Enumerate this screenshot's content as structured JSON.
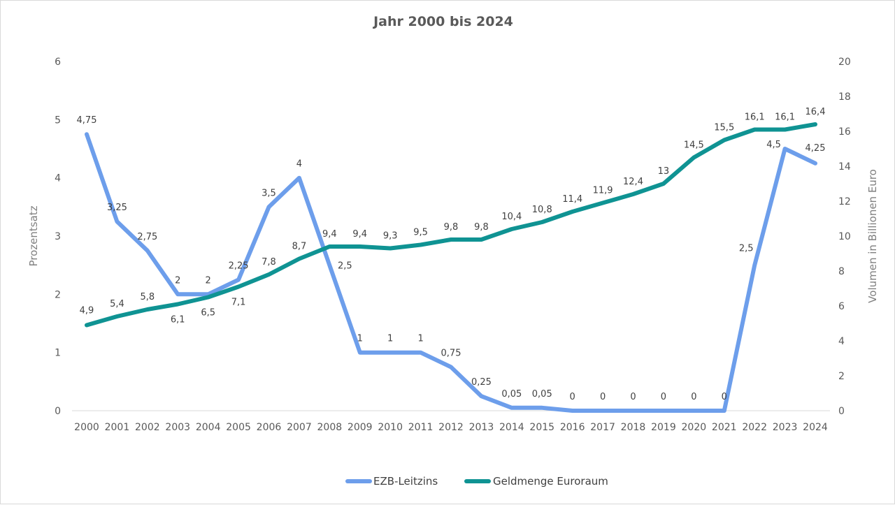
{
  "chart_data": {
    "type": "line",
    "title": "Jahr 2000 bis 2024",
    "ylabel_left": "Prozentsatz",
    "ylabel_right": "Volumen in Billionen Euro",
    "ylim_left": [
      0,
      6
    ],
    "ylim_right": [
      0,
      20
    ],
    "yticks_left": [
      "0",
      "1",
      "2",
      "3",
      "4",
      "5",
      "6"
    ],
    "yticks_right": [
      "0",
      "2",
      "4",
      "6",
      "8",
      "10",
      "12",
      "14",
      "16",
      "18",
      "20"
    ],
    "grid": false,
    "legend_position": "bottom",
    "categories": [
      "2000",
      "2001",
      "2002",
      "2003",
      "2004",
      "2005",
      "2006",
      "2007",
      "2008",
      "2009",
      "2010",
      "2011",
      "2012",
      "2013",
      "2014",
      "2015",
      "2016",
      "2017",
      "2018",
      "2019",
      "2020",
      "2021",
      "2022",
      "2023",
      "2024"
    ],
    "series": [
      {
        "name": "EZB-Leitzins",
        "axis": "left",
        "color": "#6d9eeb",
        "values": [
          4.75,
          3.25,
          2.75,
          2,
          2,
          2.25,
          3.5,
          4,
          2.5,
          1,
          1,
          1,
          0.75,
          0.25,
          0.05,
          0.05,
          0,
          0,
          0,
          0,
          0,
          0,
          2.5,
          4.5,
          4.25
        ],
        "labels": [
          "4,75",
          "3,25",
          "2,75",
          "2",
          "2",
          "2,25",
          "3,5",
          "4",
          "2,5",
          "1",
          "1",
          "1",
          "0,75",
          "0,25",
          "0,05",
          "0,05",
          "0",
          "0",
          "0",
          "0",
          "0",
          "0",
          "2,5",
          "4,5",
          "4,25"
        ]
      },
      {
        "name": "Geldmenge Euroraum",
        "axis": "right",
        "color": "#0f9393",
        "values": [
          4.9,
          5.4,
          5.8,
          6.1,
          6.5,
          7.1,
          7.8,
          8.7,
          9.4,
          9.4,
          9.3,
          9.5,
          9.8,
          9.8,
          10.4,
          10.8,
          11.4,
          11.9,
          12.4,
          13,
          14.5,
          15.5,
          16.1,
          16.1,
          16.4
        ],
        "labels": [
          "4,9",
          "5,4",
          "5,8",
          "6,1",
          "6,5",
          "7,1",
          "7,8",
          "8,7",
          "9,4",
          "9,4",
          "9,3",
          "9,5",
          "9,8",
          "9,8",
          "10,4",
          "10,8",
          "11,4",
          "11,9",
          "12,4",
          "13",
          "14,5",
          "15,5",
          "16,1",
          "16,1",
          "16,4"
        ]
      }
    ]
  }
}
